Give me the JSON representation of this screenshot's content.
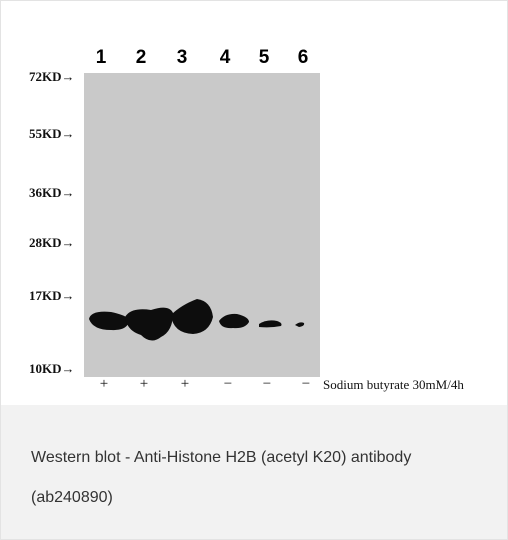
{
  "blot": {
    "lanes": [
      "1",
      "2",
      "3",
      "4",
      "5",
      "6"
    ],
    "markers": [
      "72KD→",
      "55KD→",
      "36KD→",
      "28KD→",
      "17KD→",
      "10KD→"
    ],
    "treatment_signs": [
      "+",
      "+",
      "+",
      "−",
      "−",
      "−"
    ],
    "treatment_label": "Sodium butyrate 30mM/4h"
  },
  "caption": {
    "text": "Western blot - Anti-Histone H2B (acetyl K20) antibody (ab240890)"
  }
}
